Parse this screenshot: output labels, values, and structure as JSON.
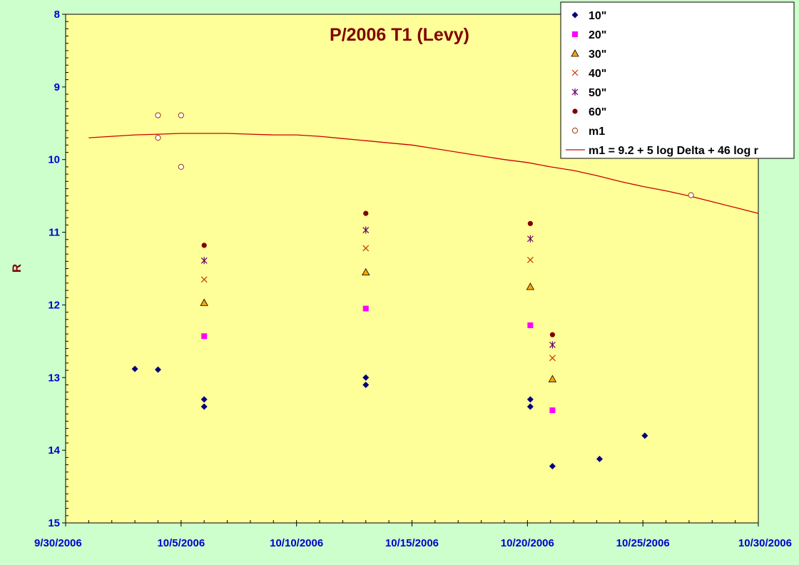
{
  "chart_data": {
    "type": "scatter",
    "title": "P/2006 T1 (Levy)",
    "xlabel": "",
    "ylabel": "R",
    "x_axis": {
      "type": "date",
      "range": [
        "9/30/2006",
        "10/30/2006"
      ],
      "tick_labels": [
        "9/30/2006",
        "10/5/2006",
        "10/10/2006",
        "10/15/2006",
        "10/20/2006",
        "10/25/2006",
        "10/30/2006"
      ]
    },
    "y_axis": {
      "range": [
        8,
        15
      ],
      "reversed": true,
      "tick_labels": [
        "8",
        "9",
        "10",
        "11",
        "12",
        "13",
        "14",
        "15"
      ]
    },
    "grid": false,
    "legend_position": "top-right",
    "colors": {
      "page_background": "#ccffcc",
      "plot_background": "#ffff99",
      "axis_text": "#0000cc",
      "title_text": "#800000"
    },
    "series": [
      {
        "name": "10\"",
        "marker": "diamond",
        "color": "#000080",
        "points": [
          [
            "10/3/2006 00:00",
            12.88
          ],
          [
            "10/4/2006 00:00",
            12.89
          ],
          [
            "10/6/2006 00:00",
            13.3
          ],
          [
            "10/6/2006 00:00",
            13.4
          ],
          [
            "10/13/2006 00:00",
            13.0
          ],
          [
            "10/13/2006 00:00",
            13.1
          ],
          [
            "10/20/2006 03:00",
            13.3
          ],
          [
            "10/20/2006 03:00",
            13.4
          ],
          [
            "10/21/2006 02:00",
            14.22
          ],
          [
            "10/23/2006 03:00",
            14.12
          ],
          [
            "10/25/2006 02:00",
            13.8
          ]
        ]
      },
      {
        "name": "20\"",
        "marker": "square",
        "color": "#ff00ff",
        "points": [
          [
            "10/6/2006 00:00",
            12.43
          ],
          [
            "10/13/2006 00:00",
            12.05
          ],
          [
            "10/20/2006 03:00",
            12.28
          ],
          [
            "10/21/2006 02:00",
            13.45
          ]
        ]
      },
      {
        "name": "30\"",
        "marker": "triangle",
        "color": "#ffa500",
        "points": [
          [
            "10/6/2006 00:00",
            11.97
          ],
          [
            "10/13/2006 00:00",
            11.55
          ],
          [
            "10/20/2006 03:00",
            11.75
          ],
          [
            "10/21/2006 02:00",
            13.02
          ]
        ]
      },
      {
        "name": "40\"",
        "marker": "x",
        "color": "#cc3300",
        "points": [
          [
            "10/6/2006 00:00",
            11.65
          ],
          [
            "10/13/2006 00:00",
            11.22
          ],
          [
            "10/20/2006 03:00",
            11.38
          ],
          [
            "10/21/2006 02:00",
            12.73
          ]
        ]
      },
      {
        "name": "50\"",
        "marker": "star",
        "color": "#660066",
        "points": [
          [
            "10/6/2006 00:00",
            11.39
          ],
          [
            "10/13/2006 00:00",
            10.97
          ],
          [
            "10/20/2006 03:00",
            11.09
          ],
          [
            "10/21/2006 02:00",
            12.55
          ]
        ]
      },
      {
        "name": "60\"",
        "marker": "dot",
        "color": "#800000",
        "points": [
          [
            "10/6/2006 00:00",
            11.18
          ],
          [
            "10/13/2006 00:00",
            10.74
          ],
          [
            "10/20/2006 03:00",
            10.88
          ],
          [
            "10/21/2006 02:00",
            12.41
          ]
        ]
      },
      {
        "name": "m1",
        "marker": "circle",
        "color": "#993300",
        "points": [
          [
            "10/4/2006 00:00",
            9.39
          ],
          [
            "10/4/2006 00:00",
            9.7
          ],
          [
            "10/5/2006 00:00",
            9.39
          ],
          [
            "10/5/2006 00:00",
            10.1
          ],
          [
            "10/27/2006 02:00",
            10.49
          ]
        ]
      },
      {
        "name": "m1 = 9.2 + 5 log Delta + 46 log r",
        "marker": "line",
        "color": "#cc0000",
        "points": [
          [
            "10/1/2006 00:00",
            9.7
          ],
          [
            "10/2/2006 00:00",
            9.68
          ],
          [
            "10/3/2006 00:00",
            9.66
          ],
          [
            "10/4/2006 00:00",
            9.65
          ],
          [
            "10/5/2006 00:00",
            9.64
          ],
          [
            "10/6/2006 00:00",
            9.64
          ],
          [
            "10/7/2006 00:00",
            9.64
          ],
          [
            "10/8/2006 00:00",
            9.65
          ],
          [
            "10/9/2006 00:00",
            9.66
          ],
          [
            "10/10/2006 00:00",
            9.66
          ],
          [
            "10/11/2006 00:00",
            9.68
          ],
          [
            "10/12/2006 00:00",
            9.71
          ],
          [
            "10/13/2006 00:00",
            9.74
          ],
          [
            "10/14/2006 00:00",
            9.77
          ],
          [
            "10/15/2006 00:00",
            9.8
          ],
          [
            "10/16/2006 00:00",
            9.85
          ],
          [
            "10/17/2006 00:00",
            9.9
          ],
          [
            "10/18/2006 00:00",
            9.95
          ],
          [
            "10/19/2006 00:00",
            10.0
          ],
          [
            "10/20/2006 00:00",
            10.04
          ],
          [
            "10/21/2006 00:00",
            10.1
          ],
          [
            "10/22/2006 00:00",
            10.15
          ],
          [
            "10/23/2006 00:00",
            10.22
          ],
          [
            "10/24/2006 00:00",
            10.3
          ],
          [
            "10/25/2006 00:00",
            10.37
          ],
          [
            "10/26/2006 00:00",
            10.43
          ],
          [
            "10/27/2006 00:00",
            10.5
          ],
          [
            "10/28/2006 00:00",
            10.58
          ],
          [
            "10/29/2006 00:00",
            10.66
          ],
          [
            "10/30/2006 00:00",
            10.74
          ]
        ]
      }
    ]
  }
}
